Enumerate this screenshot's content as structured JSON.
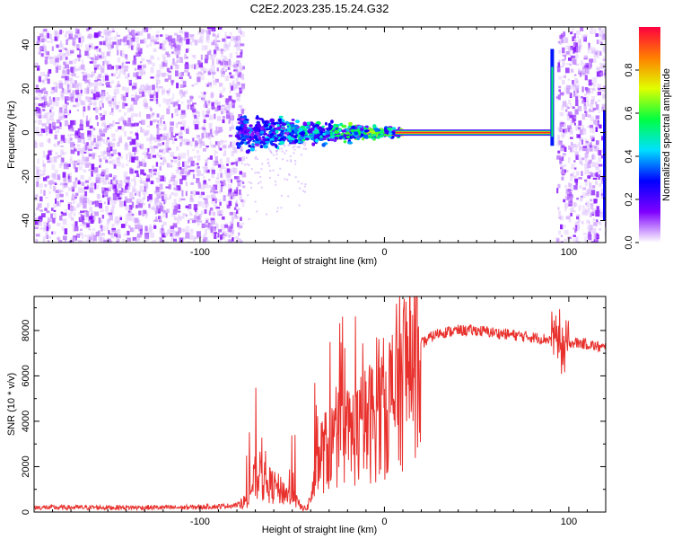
{
  "title": "C2E2.2023.235.15.24.G32",
  "chart_data": [
    {
      "type": "heatmap",
      "xlabel": "Height of straight line (km)",
      "ylabel": "Frequency (Hz)",
      "xlim": [
        -190,
        120
      ],
      "ylim": [
        -50,
        48
      ],
      "x_ticks": [
        -100,
        0,
        100
      ],
      "y_ticks": [
        -40,
        -20,
        0,
        20,
        40
      ],
      "noise_regions_x": [
        [
          -190,
          -77
        ],
        [
          93,
          120
        ]
      ],
      "carrier": {
        "scattered_x_range": [
          -80,
          10
        ],
        "steady_x_range": [
          10,
          90
        ],
        "frequency": 0,
        "steady_amplitude": 0.95,
        "spike_x": 91,
        "spike_frequency_range": [
          -6,
          38
        ]
      },
      "colorbar": {
        "label": "Normalized spectral amplitude",
        "range": [
          0,
          1
        ],
        "ticks": [
          0.0,
          0.2,
          0.4,
          0.6,
          0.8
        ],
        "colors": [
          "#ffffff",
          "#7f00ff",
          "#0000ff",
          "#00e0ff",
          "#00ff40",
          "#e0ff00",
          "#ff7f00",
          "#ff0040"
        ]
      }
    },
    {
      "type": "line",
      "xlabel": "Height of straight line (km)",
      "ylabel": "SNR (10 * v/v)",
      "xlim": [
        -190,
        120
      ],
      "ylim": [
        0,
        9500
      ],
      "x_ticks": [
        -100,
        0,
        100
      ],
      "y_ticks": [
        0,
        2000,
        4000,
        6000,
        8000
      ],
      "color": "#e8302c",
      "series": [
        {
          "x": [
            -190,
            -170,
            -150,
            -130,
            -110,
            -90,
            -80,
            -75,
            -70,
            -65,
            -60,
            -55,
            -50,
            -45,
            -42,
            -38,
            -35,
            -30,
            -25,
            -20,
            -15,
            -10,
            -5,
            0,
            5,
            10,
            15,
            20,
            25,
            30,
            40,
            50,
            60,
            70,
            80,
            90,
            95,
            97,
            100,
            110,
            120
          ],
          "values": [
            200,
            200,
            200,
            200,
            200,
            250,
            300,
            500,
            1500,
            1300,
            1100,
            900,
            700,
            200,
            150,
            1200,
            2500,
            2800,
            3200,
            3300,
            3500,
            3800,
            4200,
            4600,
            5200,
            6000,
            6800,
            7400,
            7700,
            7900,
            8000,
            8000,
            7900,
            7800,
            7700,
            7600,
            7700,
            7000,
            7500,
            7400,
            7200
          ]
        }
      ]
    }
  ]
}
